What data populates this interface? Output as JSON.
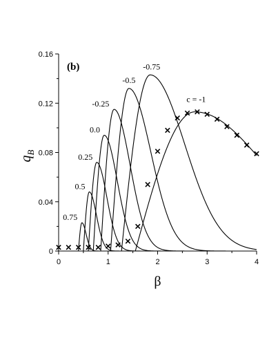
{
  "chart_data": {
    "type": "line",
    "panel_label": "(b)",
    "xlabel": "β",
    "ylabel_main": "q",
    "ylabel_sub": "B",
    "xlim": [
      0,
      4
    ],
    "ylim": [
      0,
      0.16
    ],
    "x_ticks": [
      0,
      1,
      2,
      3,
      4
    ],
    "x_tick_labels": [
      "0",
      "1",
      "2",
      "3",
      "4"
    ],
    "y_ticks": [
      0,
      0.04,
      0.08,
      0.12,
      0.16
    ],
    "y_tick_labels": [
      "0",
      "0.04",
      "0.08",
      "0.12",
      "0.16"
    ],
    "grid": false,
    "series": [
      {
        "label": "0.75",
        "x0": 0.4,
        "peak_x": 0.47,
        "peak_y": 0.023
      },
      {
        "label": "0.5",
        "x0": 0.5,
        "peak_x": 0.62,
        "peak_y": 0.048
      },
      {
        "label": "0.25",
        "x0": 0.6,
        "peak_x": 0.77,
        "peak_y": 0.072
      },
      {
        "label": "0.0",
        "x0": 0.7,
        "peak_x": 0.92,
        "peak_y": 0.094
      },
      {
        "label": "-0.25",
        "x0": 0.85,
        "peak_x": 1.12,
        "peak_y": 0.115
      },
      {
        "label": "-0.5",
        "x0": 1.05,
        "peak_x": 1.42,
        "peak_y": 0.132
      },
      {
        "label": "-0.75",
        "x0": 1.27,
        "peak_x": 1.85,
        "peak_y": 0.143
      },
      {
        "label": "c = -1",
        "x0": 1.55,
        "peak_x": 2.75,
        "peak_y": 0.113
      }
    ],
    "markers": {
      "symbol": "x",
      "x": [
        0.0,
        0.2,
        0.4,
        0.6,
        0.8,
        1.0,
        1.2,
        1.4,
        1.6,
        1.8,
        2.0,
        2.2,
        2.4,
        2.6,
        2.8,
        3.0,
        3.2,
        3.4,
        3.6,
        3.8,
        4.0
      ],
      "y": [
        0.003,
        0.003,
        0.003,
        0.003,
        0.003,
        0.004,
        0.005,
        0.008,
        0.02,
        0.054,
        0.081,
        0.098,
        0.108,
        0.112,
        0.113,
        0.111,
        0.107,
        0.101,
        0.094,
        0.086,
        0.079
      ]
    }
  }
}
